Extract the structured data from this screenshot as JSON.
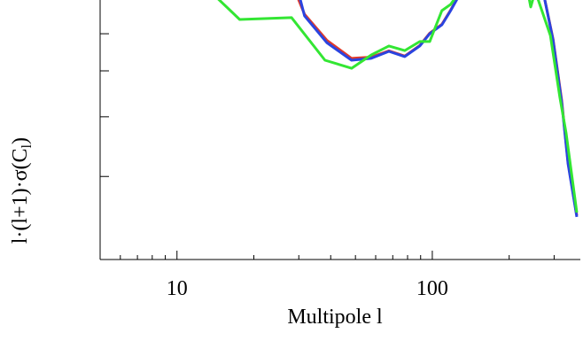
{
  "chart_data": {
    "type": "line",
    "x_label": "Multipole l",
    "y_label": "l·(l+1)·σ(C",
    "y_label_sub": "l",
    "y_label_end": ")",
    "xscale": "log",
    "xlim": [
      5,
      380
    ],
    "xticks": [
      10,
      100
    ],
    "xminor": [
      6,
      7,
      8,
      9,
      20,
      30,
      40,
      50,
      60,
      70,
      80,
      90,
      200,
      300
    ],
    "ylim": [
      0,
      100
    ],
    "yticks": [
      32,
      55,
      72.7,
      87
    ],
    "series": [
      {
        "name": "red",
        "color": "#e03a2a",
        "x": [
          28.1,
          31.6,
          38.6,
          48.3,
          57.6,
          67.6,
          78.0,
          89.3,
          97.7,
          109,
          118,
          136,
          267,
          297,
          321,
          340,
          368
        ],
        "values": [
          106.8,
          94.5,
          84.5,
          77.5,
          78,
          80.4,
          78.4,
          82.5,
          87.2,
          90.6,
          96.1,
          106.8,
          106.8,
          85,
          61.5,
          37.5,
          17
        ]
      },
      {
        "name": "blue",
        "color": "#2a44e0",
        "x": [
          29.2,
          31.6,
          38.6,
          48.3,
          57.6,
          67.6,
          78.0,
          89.3,
          97.7,
          109,
          118,
          136,
          267,
          297,
          321,
          340,
          368
        ],
        "values": [
          106.8,
          93.9,
          83.6,
          76.8,
          77.5,
          80.2,
          78.2,
          82.3,
          87,
          90.4,
          95.9,
          106.8,
          106.8,
          84.6,
          60.8,
          36.9,
          16.4
        ]
      },
      {
        "name": "green",
        "color": "#33e633",
        "x": [
          12.4,
          17.6,
          28.1,
          38.0,
          48.3,
          57.6,
          67.6,
          78.0,
          89.3,
          97.7,
          109,
          118,
          136,
          233,
          243,
          253,
          290,
          316,
          334,
          368
        ],
        "values": [
          106.8,
          92.5,
          93.2,
          76.8,
          73.7,
          78.8,
          82.3,
          80.5,
          84,
          84,
          95.9,
          98.3,
          106.8,
          106.8,
          97.3,
          103.4,
          86.3,
          62.5,
          48.8,
          18.1
        ]
      }
    ]
  }
}
